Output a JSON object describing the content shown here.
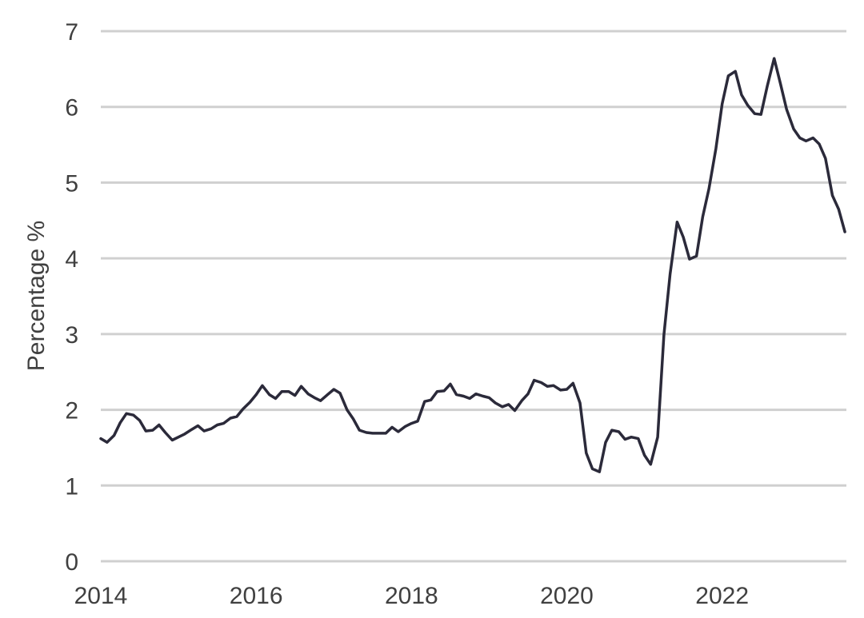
{
  "chart_data": {
    "type": "line",
    "title": "",
    "xlabel": "",
    "ylabel": "Percentage %",
    "xlim": [
      2014,
      2023.6
    ],
    "ylim": [
      0,
      7
    ],
    "xticks": [
      "2014",
      "2016",
      "2018",
      "2020",
      "2022"
    ],
    "yticks": [
      "0",
      "1",
      "2",
      "3",
      "4",
      "5",
      "6",
      "7"
    ],
    "grid": true,
    "legend": "none",
    "colors": {
      "line": "#2b2a3a",
      "grid": "#d0d0d0",
      "text": "#404040"
    },
    "series": [
      {
        "x": [
          2014.0,
          2014.08,
          2014.17,
          2014.25,
          2014.33,
          2014.42,
          2014.5,
          2014.58,
          2014.67,
          2014.75,
          2014.83,
          2014.92,
          2015.0,
          2015.08,
          2015.17,
          2015.25,
          2015.33,
          2015.42,
          2015.5,
          2015.58,
          2015.67,
          2015.75,
          2015.83,
          2015.92,
          2016.0,
          2016.08,
          2016.17,
          2016.25,
          2016.33,
          2016.42,
          2016.5,
          2016.58,
          2016.67,
          2016.75,
          2016.83,
          2016.92,
          2017.0,
          2017.08,
          2017.17,
          2017.25,
          2017.33,
          2017.42,
          2017.5,
          2017.58,
          2017.67,
          2017.75,
          2017.83,
          2017.92,
          2018.0,
          2018.08,
          2018.17,
          2018.25,
          2018.33,
          2018.42,
          2018.5,
          2018.58,
          2018.67,
          2018.75,
          2018.83,
          2018.92,
          2019.0,
          2019.08,
          2019.17,
          2019.25,
          2019.33,
          2019.42,
          2019.5,
          2019.58,
          2019.67,
          2019.75,
          2019.83,
          2019.92,
          2020.0,
          2020.08,
          2020.17,
          2020.25,
          2020.33,
          2020.42,
          2020.5,
          2020.58,
          2020.67,
          2020.75,
          2020.83,
          2020.92,
          2021.0,
          2021.08,
          2021.17,
          2021.25,
          2021.33,
          2021.42,
          2021.5,
          2021.58,
          2021.67,
          2021.75,
          2021.83,
          2021.92,
          2022.0,
          2022.08,
          2022.17,
          2022.25,
          2022.33,
          2022.42,
          2022.5,
          2022.58,
          2022.67,
          2022.75,
          2022.83,
          2022.92,
          2023.0,
          2023.08,
          2023.17,
          2023.25,
          2023.33,
          2023.42,
          2023.5,
          2023.58
        ],
        "values": [
          1.62,
          1.57,
          1.66,
          1.83,
          1.95,
          1.93,
          1.86,
          1.72,
          1.73,
          1.8,
          1.7,
          1.6,
          1.64,
          1.68,
          1.74,
          1.79,
          1.72,
          1.75,
          1.8,
          1.82,
          1.89,
          1.91,
          2.01,
          2.1,
          2.2,
          2.32,
          2.2,
          2.15,
          2.24,
          2.24,
          2.19,
          2.31,
          2.21,
          2.16,
          2.12,
          2.2,
          2.27,
          2.22,
          2.0,
          1.88,
          1.73,
          1.7,
          1.69,
          1.69,
          1.69,
          1.77,
          1.71,
          1.78,
          1.82,
          1.85,
          2.11,
          2.13,
          2.24,
          2.25,
          2.34,
          2.2,
          2.18,
          2.15,
          2.21,
          2.18,
          2.16,
          2.09,
          2.04,
          2.07,
          1.99,
          2.12,
          2.21,
          2.39,
          2.36,
          2.31,
          2.32,
          2.26,
          2.27,
          2.35,
          2.09,
          1.43,
          1.22,
          1.18,
          1.57,
          1.73,
          1.71,
          1.61,
          1.64,
          1.62,
          1.4,
          1.28,
          1.64,
          2.99,
          3.79,
          4.48,
          4.28,
          3.99,
          4.03,
          4.55,
          4.92,
          5.45,
          6.04,
          6.41,
          6.47,
          6.16,
          6.02,
          5.91,
          5.9,
          6.27,
          6.64,
          6.31,
          5.97,
          5.71,
          5.59,
          5.55,
          5.59,
          5.51,
          5.32,
          4.83,
          4.65,
          4.35
        ]
      }
    ]
  }
}
